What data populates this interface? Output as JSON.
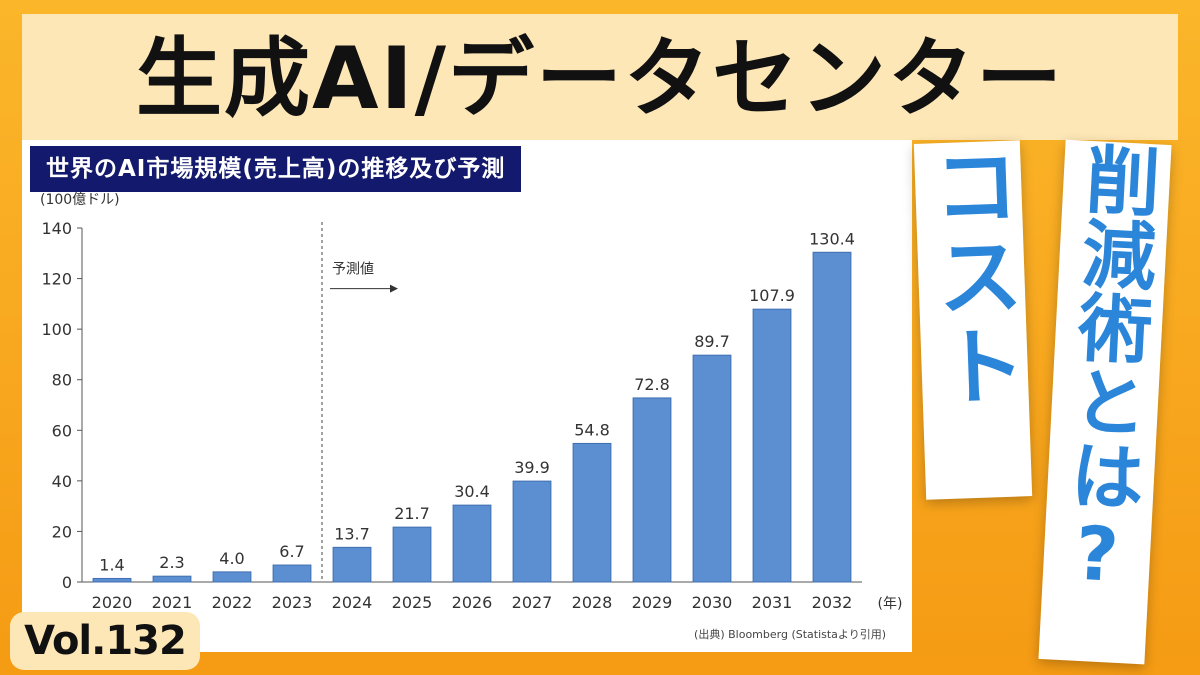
{
  "title": "生成AI/データセンター",
  "banners": {
    "cost": "コスト",
    "sakugen": "削減術とは?"
  },
  "volume": "Vol.132",
  "chart_title": "世界のAI市場規模(売上高)の推移及び予測",
  "source_note": "(出典) Bloomberg (Statistaより引用)",
  "chart_data": {
    "type": "bar",
    "title": "世界のAI市場規模(売上高)の推移及び予測",
    "ylabel": "(100億ドル)",
    "xlabel_unit": "(年)",
    "ylim": [
      0,
      140
    ],
    "yticks": [
      0,
      20,
      40,
      60,
      80,
      100,
      120,
      140
    ],
    "categories": [
      "2020",
      "2021",
      "2022",
      "2023",
      "2024",
      "2025",
      "2026",
      "2027",
      "2028",
      "2029",
      "2030",
      "2031",
      "2032"
    ],
    "values": [
      1.4,
      2.3,
      4.0,
      6.7,
      13.7,
      21.7,
      30.4,
      39.9,
      54.8,
      72.8,
      89.7,
      107.9,
      130.4
    ],
    "value_labels": [
      "1.4",
      "2.3",
      "4.0",
      "6.7",
      "13.7",
      "21.7",
      "30.4",
      "39.9",
      "54.8",
      "72.8",
      "89.7",
      "107.9",
      "130.4"
    ],
    "annotation": "予測値",
    "forecast_start": "2024",
    "bar_color": "#5b8fd2",
    "grid": false,
    "legend": "none"
  },
  "colors": {
    "background": "#f8a51c",
    "title_band": "#fde7b6",
    "chart_title_bg": "#13196c",
    "banner_text": "#2b86d9"
  }
}
